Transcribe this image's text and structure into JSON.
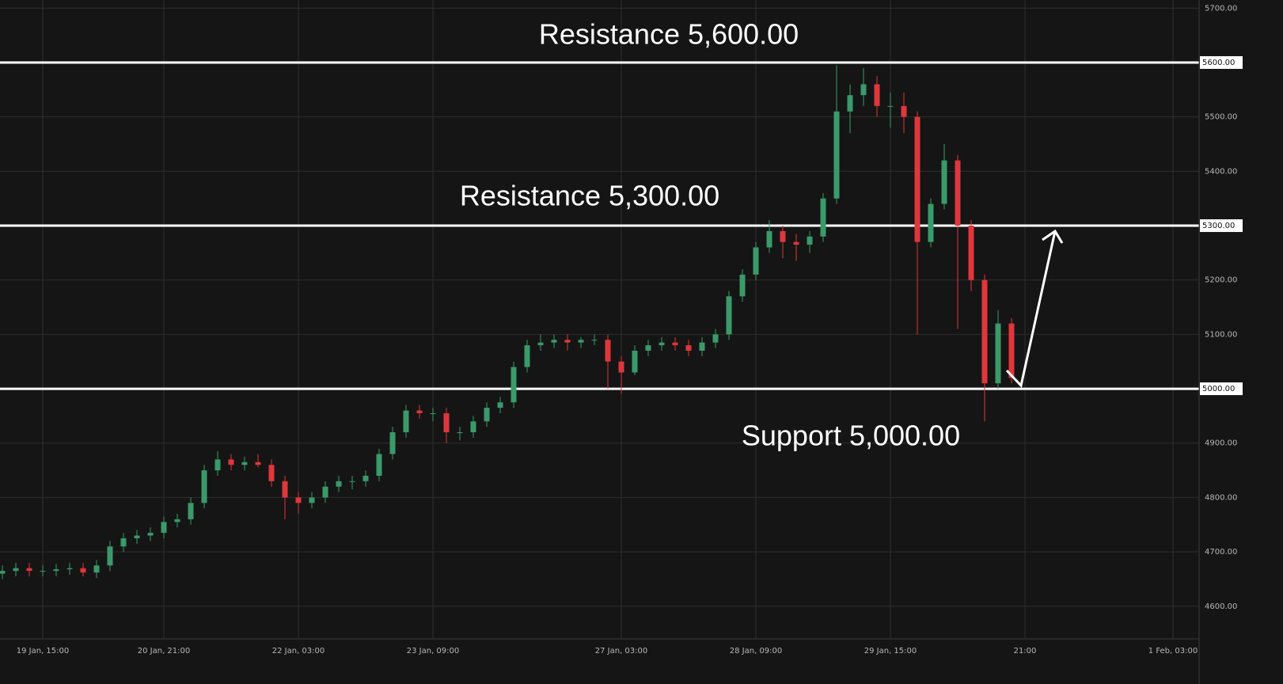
{
  "chart_data": {
    "type": "candlestick",
    "categories": [
      null,
      null,
      null,
      "19 Jan, 15:00",
      null,
      null,
      null,
      null,
      null,
      null,
      null,
      null,
      "20 Jan, 21:00",
      null,
      null,
      null,
      null,
      null,
      null,
      null,
      null,
      null,
      "22 Jan, 03:00",
      null,
      null,
      null,
      null,
      null,
      null,
      null,
      null,
      null,
      "23 Jan, 09:00",
      null,
      null,
      null,
      null,
      null,
      null,
      null,
      null,
      null,
      null,
      null,
      null,
      null,
      "27 Jan, 03:00",
      null,
      null,
      null,
      null,
      null,
      null,
      null,
      null,
      null,
      "28 Jan, 09:00",
      null,
      null,
      null,
      null,
      null,
      null,
      null,
      null,
      null,
      "29 Jan, 15:00",
      null,
      null,
      null,
      null,
      null,
      null,
      null,
      null,
      null,
      "21:00",
      null,
      null,
      null,
      null,
      null,
      null,
      null,
      null,
      null,
      null,
      "1 Feb, 03:00"
    ],
    "open": [
      4660,
      4665,
      4670,
      4665,
      4665,
      4668,
      4670,
      4662,
      4675,
      4710,
      4725,
      4730,
      4735,
      4755,
      4760,
      4790,
      4850,
      4870,
      4860,
      4865,
      4860,
      4830,
      4800,
      4790,
      4800,
      4820,
      4830,
      4830,
      4840,
      4880,
      4920,
      4960,
      4955,
      4955,
      4920,
      4920,
      4940,
      4965,
      4975,
      5040,
      5080,
      5085,
      5090,
      5085,
      5090,
      5090,
      5050,
      5030,
      5070,
      5080,
      5085,
      5080,
      5070,
      5085,
      5100,
      5170,
      5210,
      5260,
      5290,
      5270,
      5265,
      5280,
      5350,
      5510,
      5540,
      5560,
      5520,
      5520,
      5500,
      5270,
      5340,
      5420,
      5300,
      5200,
      5010,
      5120,
      null,
      null,
      null,
      null,
      null,
      null,
      null,
      null,
      null,
      null,
      null,
      null
    ],
    "high": [
      4675,
      4680,
      4680,
      4675,
      4678,
      4680,
      4680,
      4685,
      4720,
      4735,
      4740,
      4745,
      4765,
      4770,
      4800,
      4860,
      4885,
      4880,
      4875,
      4880,
      4870,
      4840,
      4810,
      4810,
      4830,
      4840,
      4840,
      4850,
      4890,
      4930,
      4970,
      4970,
      4965,
      4965,
      4930,
      4950,
      4975,
      4985,
      5050,
      5090,
      5100,
      5100,
      5100,
      5095,
      5100,
      5100,
      5060,
      5080,
      5090,
      5095,
      5095,
      5090,
      5095,
      5110,
      5180,
      5220,
      5270,
      5310,
      5300,
      5285,
      5290,
      5360,
      5595,
      5560,
      5590,
      5575,
      5545,
      5545,
      5510,
      5350,
      5450,
      5430,
      5310,
      5210,
      5145,
      5130,
      null,
      null,
      null,
      null,
      null,
      null,
      null,
      null,
      null,
      null,
      null,
      null
    ],
    "low": [
      4650,
      4655,
      4655,
      4655,
      4655,
      4658,
      4655,
      4652,
      4665,
      4700,
      4715,
      4720,
      4725,
      4745,
      4750,
      4780,
      4840,
      4850,
      4850,
      4855,
      4820,
      4760,
      4770,
      4780,
      4790,
      4810,
      4815,
      4820,
      4830,
      4870,
      4910,
      4945,
      4940,
      4900,
      4905,
      4910,
      4930,
      4955,
      4965,
      5030,
      5070,
      5075,
      5070,
      5075,
      5080,
      5000,
      4990,
      5025,
      5060,
      5070,
      5070,
      5060,
      5060,
      5075,
      5090,
      5160,
      5200,
      5250,
      5240,
      5235,
      5250,
      5270,
      5340,
      5470,
      5520,
      5500,
      5480,
      5470,
      5100,
      5260,
      5330,
      5110,
      5180,
      4940,
      5000,
      5010,
      null,
      null,
      null,
      null,
      null,
      null,
      null,
      null,
      null,
      null,
      null,
      null
    ],
    "close": [
      4665,
      4670,
      4665,
      4665,
      4668,
      4670,
      4662,
      4675,
      4710,
      4725,
      4730,
      4735,
      4755,
      4760,
      4790,
      4850,
      4870,
      4860,
      4865,
      4860,
      4830,
      4800,
      4790,
      4800,
      4820,
      4830,
      4830,
      4840,
      4880,
      4920,
      4960,
      4955,
      4955,
      4920,
      4920,
      4940,
      4965,
      4975,
      5040,
      5080,
      5085,
      5090,
      5085,
      5090,
      5090,
      5050,
      5030,
      5070,
      5080,
      5085,
      5080,
      5070,
      5085,
      5100,
      5170,
      5210,
      5260,
      5290,
      5270,
      5265,
      5280,
      5350,
      5510,
      5540,
      5560,
      5520,
      5520,
      5500,
      5270,
      5340,
      5420,
      5300,
      5200,
      5010,
      5120,
      5020,
      null,
      null,
      null,
      null,
      null,
      null,
      null,
      null,
      null,
      null,
      null,
      null
    ],
    "up_color": "#3a9a6a",
    "down_color": "#e0363c",
    "ylim": [
      4540,
      5715
    ],
    "yticks": [
      {
        "value": 4600,
        "label": "4600.00"
      },
      {
        "value": 4700,
        "label": "4700.00"
      },
      {
        "value": 4800,
        "label": "4800.00"
      },
      {
        "value": 4900,
        "label": "4900.00"
      },
      {
        "value": 5000,
        "label": "5000.00"
      },
      {
        "value": 5100,
        "label": "5100.00"
      },
      {
        "value": 5200,
        "label": "5200.00"
      },
      {
        "value": 5300,
        "label": "5300.00"
      },
      {
        "value": 5400,
        "label": "5400.00"
      },
      {
        "value": 5500,
        "label": "5500.00"
      },
      {
        "value": 5600,
        "label": "5600.00"
      },
      {
        "value": 5700,
        "label": "5700.00"
      }
    ],
    "grid": true,
    "levels": [
      {
        "value": 5600,
        "label": "Resistance 5,600.00",
        "tag": "5600.00"
      },
      {
        "value": 5300,
        "label": "Resistance 5,300.00",
        "tag": "5300.00"
      },
      {
        "value": 5000,
        "label": "Support 5,000.00",
        "tag": "5000.00"
      }
    ]
  }
}
